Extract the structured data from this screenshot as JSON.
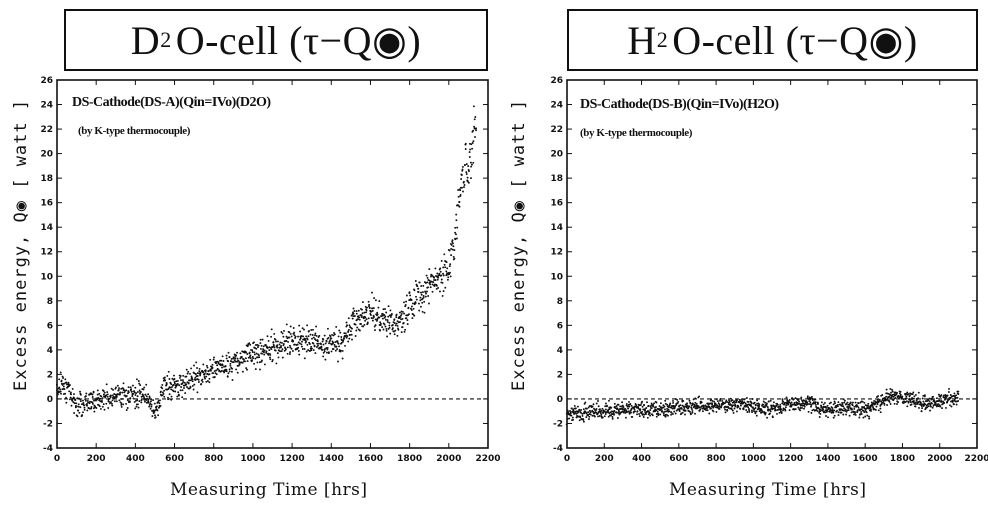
{
  "chart_data": [
    {
      "type": "scatter",
      "title_main": "D",
      "title_sub": "2",
      "title_tail": "O-cell (τ−Q◉)",
      "xlabel": "Measuring Time [hrs]",
      "ylabel": "Excess energy, Q◉ [ watt ]",
      "annotations": [
        "DS-Cathode(DS-A)(Qin=IVo)(D2O)",
        "(by K-type thermocouple)"
      ],
      "xlim": [
        0,
        2200
      ],
      "ylim": [
        -4,
        26
      ],
      "x_ticks": [
        0,
        200,
        400,
        600,
        800,
        1000,
        1200,
        1400,
        1600,
        1800,
        2000,
        2200
      ],
      "y_ticks": [
        -4,
        -2,
        0,
        2,
        4,
        6,
        8,
        10,
        12,
        14,
        16,
        18,
        20,
        22,
        24,
        26
      ],
      "baseline_y": 0,
      "series": [
        {
          "trend": [
            [
              0,
              0.8
            ],
            [
              30,
              1.3
            ],
            [
              60,
              0.7
            ],
            [
              100,
              -0.4
            ],
            [
              150,
              -0.3
            ],
            [
              200,
              0.0
            ],
            [
              300,
              0.2
            ],
            [
              400,
              0.3
            ],
            [
              450,
              0.4
            ],
            [
              480,
              -0.2
            ],
            [
              500,
              -1.2
            ],
            [
              520,
              -0.8
            ],
            [
              540,
              1.0
            ],
            [
              600,
              1.1
            ],
            [
              700,
              1.6
            ],
            [
              800,
              2.5
            ],
            [
              900,
              3.0
            ],
            [
              1000,
              3.7
            ],
            [
              1100,
              4.1
            ],
            [
              1200,
              4.8
            ],
            [
              1300,
              4.6
            ],
            [
              1400,
              4.4
            ],
            [
              1450,
              4.5
            ],
            [
              1480,
              5.5
            ],
            [
              1530,
              6.5
            ],
            [
              1600,
              7.3
            ],
            [
              1650,
              6.5
            ],
            [
              1700,
              6.2
            ],
            [
              1750,
              6.3
            ],
            [
              1800,
              7.5
            ],
            [
              1900,
              9.5
            ],
            [
              2000,
              10.5
            ],
            [
              2030,
              13.0
            ],
            [
              2060,
              17.5
            ],
            [
              2100,
              19.5
            ],
            [
              2140,
              22.5
            ]
          ],
          "spread": 0.9,
          "step": 3
        }
      ]
    },
    {
      "type": "scatter",
      "title_main": "H",
      "title_sub": "2",
      "title_tail": "O-cell (τ−Q◉)",
      "xlabel": "Measuring Time [hrs]",
      "ylabel": "Excess energy, Q◉ [ watt ]",
      "annotations": [
        "DS-Cathode(DS-B)(Qin=IVo)(H2O)",
        "(by K-type thermocouple)"
      ],
      "xlim": [
        0,
        2200
      ],
      "ylim": [
        -4,
        26
      ],
      "x_ticks": [
        0,
        200,
        400,
        600,
        800,
        1000,
        1200,
        1400,
        1600,
        1800,
        2000,
        2200
      ],
      "y_ticks": [
        -4,
        -2,
        0,
        2,
        4,
        6,
        8,
        10,
        12,
        14,
        16,
        18,
        20,
        22,
        24,
        26
      ],
      "baseline_y": 0,
      "series": [
        {
          "trend": [
            [
              0,
              -1.2
            ],
            [
              200,
              -1.0
            ],
            [
              400,
              -0.8
            ],
            [
              500,
              -0.9
            ],
            [
              600,
              -0.7
            ],
            [
              800,
              -0.5
            ],
            [
              1000,
              -0.6
            ],
            [
              1100,
              -0.8
            ],
            [
              1200,
              -0.3
            ],
            [
              1300,
              -0.4
            ],
            [
              1350,
              -0.7
            ],
            [
              1400,
              -0.8
            ],
            [
              1500,
              -0.6
            ],
            [
              1600,
              -1.0
            ],
            [
              1700,
              -0.1
            ],
            [
              1750,
              0.3
            ],
            [
              1800,
              0.1
            ],
            [
              1900,
              -0.3
            ],
            [
              2000,
              -0.2
            ],
            [
              2100,
              0.2
            ]
          ],
          "spread": 0.6,
          "step": 3
        }
      ]
    }
  ]
}
